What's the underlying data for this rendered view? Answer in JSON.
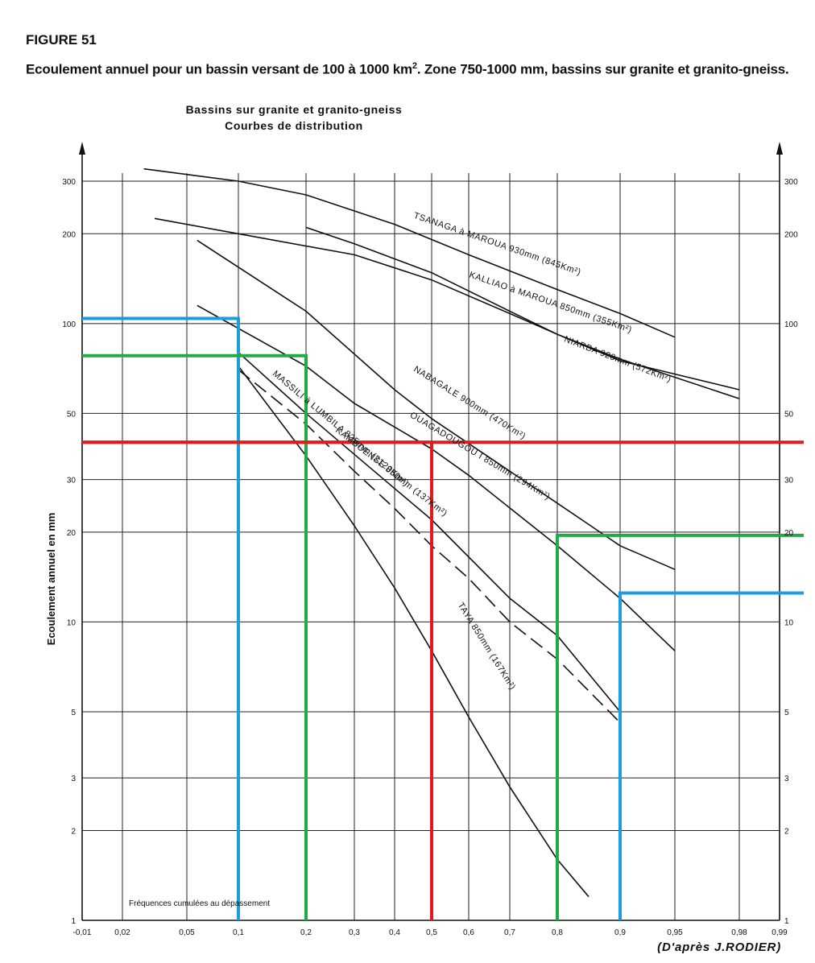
{
  "figure_label": "FIGURE 51",
  "caption_main": "Ecoulement annuel pour un bassin versant de 100 à 1000 km",
  "caption_sup": "2",
  "caption_rest": ". Zone 750-1000 mm, bassins sur granite et granito-gneiss.",
  "chart_title_line1": "Bassins sur granite et granito-gneiss",
  "chart_title_line2": "Courbes de distribution",
  "credit": "(D'après J.RODIER)",
  "chart_data": {
    "type": "line",
    "title": "Bassins sur granite et granito-gneiss — Courbes de distribution",
    "xlabel": "Fréquences cumulées au dépassement",
    "ylabel": "Ecoulement annuel en mm",
    "x_scale": "normal probability",
    "y_scale": "log",
    "xlim": [
      0.01,
      0.99
    ],
    "ylim": [
      1,
      300
    ],
    "x_ticks": [
      0.01,
      0.02,
      0.05,
      0.1,
      0.2,
      0.3,
      0.4,
      0.5,
      0.6,
      0.7,
      0.8,
      0.9,
      0.95,
      0.98,
      0.99
    ],
    "x_tick_labels": [
      "-0,01",
      "0,02",
      "0,05",
      "0,1",
      "0,2",
      "0,3",
      "0,4",
      "0,5",
      "0,6",
      "0,7",
      "0,8",
      "0,9",
      "0,95",
      "0,98",
      "0,99"
    ],
    "y_ticks": [
      1,
      2,
      3,
      5,
      10,
      20,
      30,
      50,
      100,
      200,
      300
    ],
    "y_tick_labels": [
      "1",
      "2",
      "3",
      "5",
      "10",
      "20",
      "30",
      "50",
      "100",
      "200",
      "300"
    ],
    "grid": true,
    "series": [
      {
        "name": "TSANAGA à MAROUA 930mm (845Km²)",
        "label": "TSANAGA à MAROUA  930mm  (845Km²)",
        "style": "solid",
        "x": [
          0.03,
          0.1,
          0.2,
          0.4,
          0.6,
          0.8,
          0.9,
          0.95
        ],
        "y": [
          330,
          300,
          270,
          215,
          170,
          130,
          108,
          90
        ]
      },
      {
        "name": "KALLIAO à MAROUA 850mm (355Km²)",
        "label": "KALLIAO à MAROUA  850mm  (355Km²)",
        "style": "solid",
        "x": [
          0.2,
          0.3,
          0.5,
          0.7,
          0.8,
          0.9,
          0.98
        ],
        "y": [
          210,
          185,
          148,
          110,
          92,
          75,
          60
        ]
      },
      {
        "name": "NIARBA 920mm (572Km²)",
        "label": "NIARBA  920mm  (572Km²)",
        "style": "solid",
        "x": [
          0.035,
          0.1,
          0.3,
          0.5,
          0.7,
          0.8,
          0.9,
          0.98
        ],
        "y": [
          225,
          200,
          170,
          140,
          108,
          92,
          76,
          56
        ]
      },
      {
        "name": "NABAGALE 900mm (470Km²)",
        "label": "NABAGALE  900mm  (470Km²)",
        "style": "solid",
        "x": [
          0.06,
          0.2,
          0.4,
          0.5,
          0.7,
          0.8,
          0.9,
          0.95
        ],
        "y": [
          190,
          110,
          60,
          48,
          32,
          25,
          18,
          15
        ]
      },
      {
        "name": "OUAGADOUGOU I 850mm (294Km²)",
        "label": "OUAGADOUGOU I  850mm  (294Km²)",
        "style": "solid",
        "x": [
          0.06,
          0.2,
          0.3,
          0.5,
          0.6,
          0.8,
          0.9,
          0.95
        ],
        "y": [
          115,
          72,
          54,
          38,
          31,
          18,
          12,
          8
        ]
      },
      {
        "name": "KAMBOENSE 850mm (137Km²)",
        "label": "KAMBOENSE  850mm  (137Km²)",
        "style": "solid",
        "x": [
          0.1,
          0.2,
          0.4,
          0.5,
          0.7,
          0.8,
          0.9
        ],
        "y": [
          80,
          50,
          28,
          22,
          12,
          9,
          5
        ]
      },
      {
        "name": "MASSILI à LUMBILA 825mm (2120Km²)",
        "label": "MASSILI à LUMBILA  825mm  (2120Km²)",
        "style": "dashed",
        "x": [
          0.1,
          0.2,
          0.3,
          0.4,
          0.5,
          0.6,
          0.7,
          0.8,
          0.9
        ],
        "y": [
          70,
          46,
          32,
          24,
          18,
          14,
          10,
          7.5,
          4.6
        ]
      },
      {
        "name": "TAYA 850mm (167Km²)",
        "label": "TAYA  850mm  (167Km²)",
        "style": "solid",
        "x": [
          0.1,
          0.2,
          0.3,
          0.4,
          0.5,
          0.6,
          0.7,
          0.8,
          0.85
        ],
        "y": [
          72,
          36,
          21,
          13,
          8,
          4.8,
          2.8,
          1.6,
          1.2
        ]
      }
    ],
    "annotations": [
      {
        "color": "#1a9ee0",
        "x": 0.1,
        "y": 104
      },
      {
        "color": "#1a9ee0",
        "x": 0.9,
        "y": 12.5
      },
      {
        "color": "#22aa44",
        "x": 0.2,
        "y": 78
      },
      {
        "color": "#22aa44",
        "x": 0.8,
        "y": 19.5
      },
      {
        "color": "#e01b1b",
        "x": 0.5,
        "y": 40
      }
    ]
  }
}
